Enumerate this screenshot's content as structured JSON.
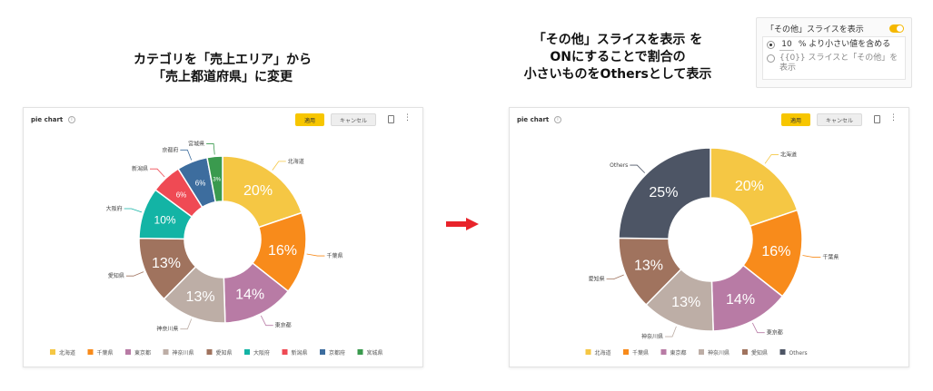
{
  "captions": {
    "left_line1": "カテゴリを「売上エリア」から",
    "left_line2": "「売上都道府県」に変更",
    "right_line1": "「その他」スライスを表示 を",
    "right_line2": "ONにすることで割合の",
    "right_line3": "小さいものをOthersとして表示"
  },
  "setting": {
    "title": "「その他」スライスを表示",
    "toggle_on": true,
    "option1_value": "10",
    "option1_suffix": "% より小さい値を含める",
    "option2_text": "{{0}} スライスと「その他」を表示",
    "selected": 1
  },
  "panels": {
    "left": {
      "title": "pie chart",
      "apply_label": "適用",
      "cancel_label": "キャンセル"
    },
    "right": {
      "title": "pie chart",
      "apply_label": "適用",
      "cancel_label": "キャンセル"
    }
  },
  "chart_data": [
    {
      "type": "pie",
      "donut": true,
      "labels": [
        "北海道",
        "千葉県",
        "東京都",
        "神奈川県",
        "愛知県",
        "大阪府",
        "新潟県",
        "京都府",
        "宮城県"
      ],
      "values": [
        20,
        16,
        14,
        13,
        13,
        10,
        6,
        6,
        3
      ],
      "data_labels": [
        "20%",
        "16%",
        "14%",
        "13%",
        "13%",
        "10%",
        "6%",
        "6%",
        "3%"
      ],
      "colors": [
        "#f5c744",
        "#f88b1b",
        "#b87ba5",
        "#bdaea6",
        "#a0735e",
        "#13b4a5",
        "#ef4a54",
        "#3d6d9e",
        "#3a9a4e"
      ],
      "legend_position": "bottom"
    },
    {
      "type": "pie",
      "donut": true,
      "labels": [
        "北海道",
        "千葉県",
        "東京都",
        "神奈川県",
        "愛知県",
        "Others"
      ],
      "values": [
        20,
        16,
        14,
        13,
        13,
        25
      ],
      "data_labels": [
        "20%",
        "16%",
        "14%",
        "13%",
        "13%",
        "25%"
      ],
      "colors": [
        "#f5c744",
        "#f88b1b",
        "#b87ba5",
        "#bdaea6",
        "#a0735e",
        "#4d5565"
      ],
      "legend_position": "bottom"
    }
  ]
}
